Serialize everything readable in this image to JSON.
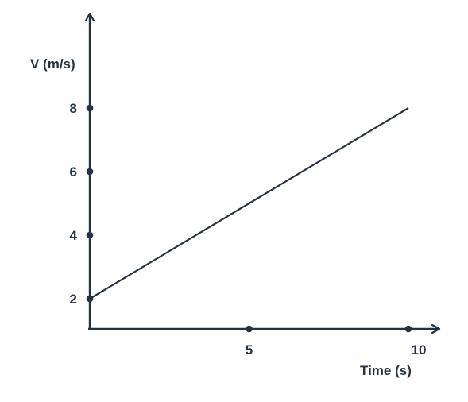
{
  "chart_data": {
    "type": "line",
    "xlabel": "Time (s)",
    "ylabel": "V (m/s)",
    "x_ticks": [
      {
        "value": 5,
        "label": "5"
      },
      {
        "value": 10,
        "label": "10"
      }
    ],
    "y_ticks": [
      {
        "value": 2,
        "label": "2"
      },
      {
        "value": 4,
        "label": "4"
      },
      {
        "value": 6,
        "label": "6"
      },
      {
        "value": 8,
        "label": "8"
      }
    ],
    "series": [
      {
        "x": [
          0,
          10
        ],
        "y": [
          2,
          8
        ]
      }
    ],
    "color": "#26323f",
    "grid": false,
    "legend": "none"
  }
}
